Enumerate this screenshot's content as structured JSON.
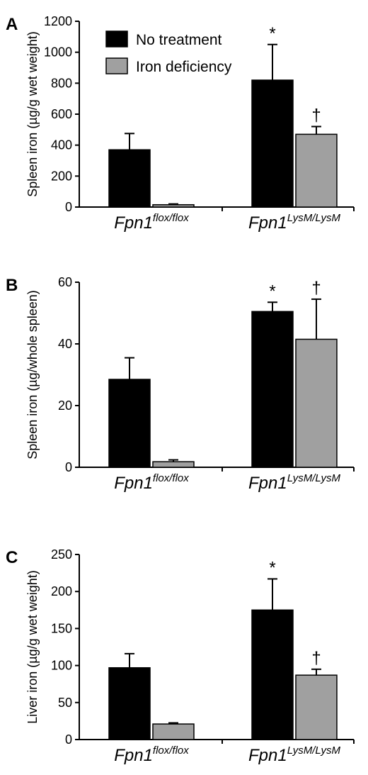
{
  "colors": {
    "no_treatment": "#000000",
    "iron_deficiency": "#a0a0a0"
  },
  "legend": [
    {
      "label": "No treatment",
      "color": "#000000"
    },
    {
      "label": "Iron deficiency",
      "color": "#a0a0a0"
    }
  ],
  "chart_data": [
    {
      "type": "bar",
      "panel": "A",
      "ylabel": "Spleen iron (µg/g wet weight)",
      "ylim": [
        0,
        1200
      ],
      "yticks": [
        0,
        200,
        400,
        600,
        800,
        1000,
        1200
      ],
      "categories": [
        {
          "base": "Fpn1",
          "sup": "flox/flox"
        },
        {
          "base": "Fpn1",
          "sup": "LysM/LysM"
        }
      ],
      "series": [
        {
          "name": "No treatment",
          "values": [
            370,
            820
          ],
          "errors": [
            105,
            230
          ]
        },
        {
          "name": "Iron deficiency",
          "values": [
            15,
            470
          ],
          "errors": [
            5,
            50
          ]
        }
      ],
      "annotations": [
        {
          "text": "*",
          "category": 1,
          "series": 0
        },
        {
          "text": "†",
          "category": 1,
          "series": 1
        }
      ],
      "legend_position": "top-left",
      "grid": false
    },
    {
      "type": "bar",
      "panel": "B",
      "ylabel": "Spleen iron (µg/whole spleen)",
      "ylim": [
        0,
        60
      ],
      "yticks": [
        0,
        20,
        40,
        60
      ],
      "categories": [
        {
          "base": "Fpn1",
          "sup": "flox/flox"
        },
        {
          "base": "Fpn1",
          "sup": "LysM/LysM"
        }
      ],
      "series": [
        {
          "name": "No treatment",
          "values": [
            28.5,
            50.5
          ],
          "errors": [
            7,
            3
          ]
        },
        {
          "name": "Iron deficiency",
          "values": [
            1.8,
            41.5
          ],
          "errors": [
            0.6,
            13
          ]
        }
      ],
      "annotations": [
        {
          "text": "*",
          "category": 1,
          "series": 0
        },
        {
          "text": "†",
          "category": 1,
          "series": 1
        }
      ],
      "grid": false
    },
    {
      "type": "bar",
      "panel": "C",
      "ylabel": "Liver iron (µg/g wet weight)",
      "ylim": [
        0,
        250
      ],
      "yticks": [
        0,
        50,
        100,
        150,
        200,
        250
      ],
      "categories": [
        {
          "base": "Fpn1",
          "sup": "flox/flox"
        },
        {
          "base": "Fpn1",
          "sup": "LysM/LysM"
        }
      ],
      "series": [
        {
          "name": "No treatment",
          "values": [
            97,
            175
          ],
          "errors": [
            19,
            42
          ]
        },
        {
          "name": "Iron deficiency",
          "values": [
            21,
            87
          ],
          "errors": [
            1.5,
            8
          ]
        }
      ],
      "annotations": [
        {
          "text": "*",
          "category": 1,
          "series": 0
        },
        {
          "text": "†",
          "category": 1,
          "series": 1
        }
      ],
      "grid": false
    }
  ]
}
